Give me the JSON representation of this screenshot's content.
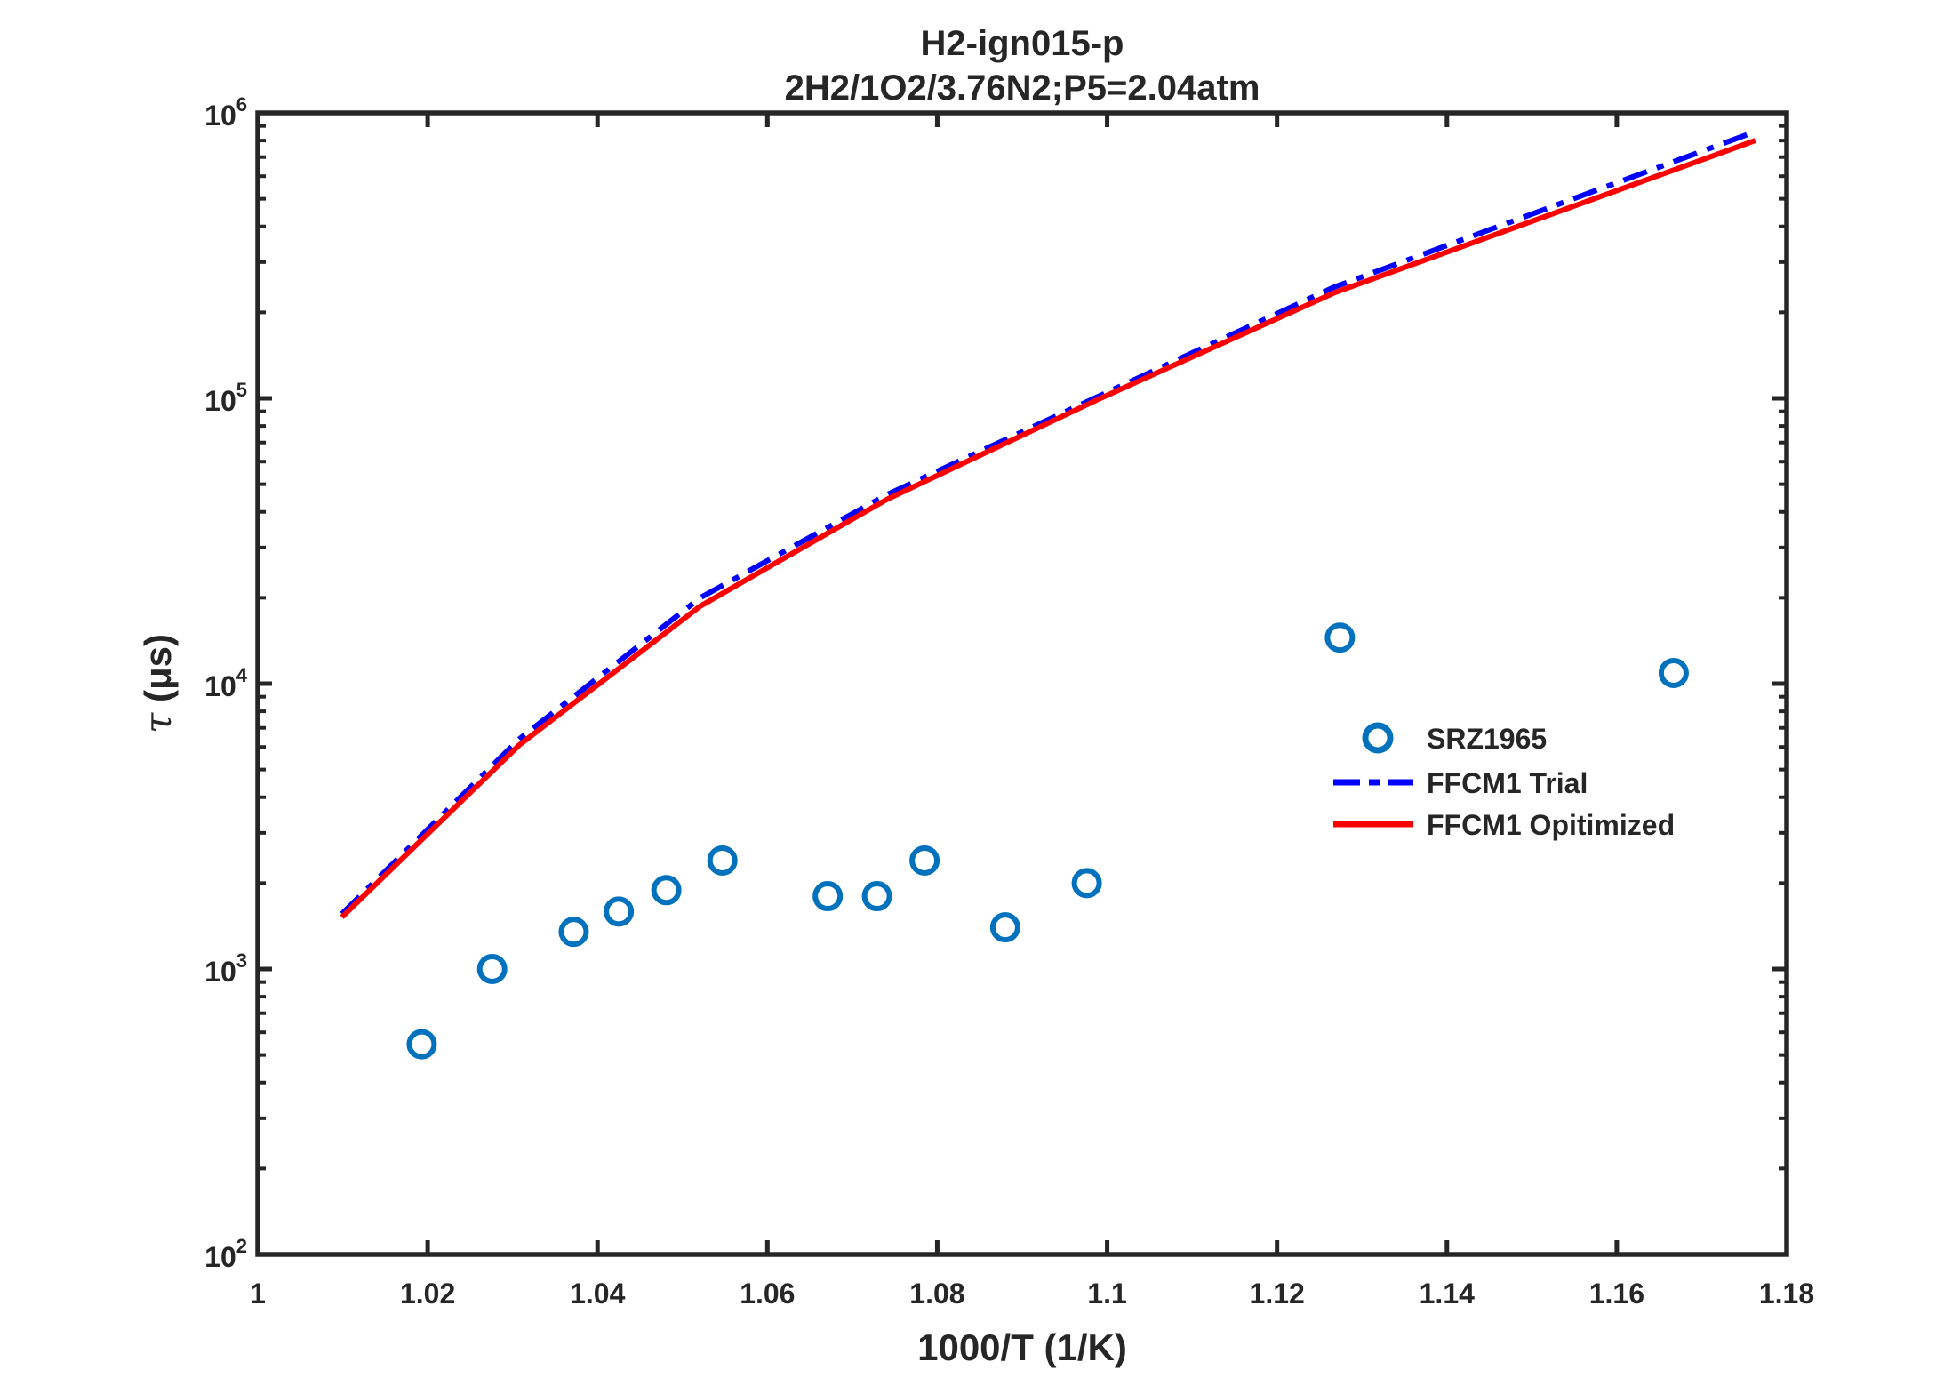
{
  "chart_data": {
    "type": "scatter",
    "title": "H2-ign015-p",
    "subtitle": "2H2/1O2/3.76N2;P5=2.04atm",
    "xlabel": "1000/T (1/K)",
    "ylabel_symbol": "τ",
    "ylabel_unit": "(μs)",
    "xlim": [
      1.0,
      1.18
    ],
    "ylim": [
      100,
      1000000
    ],
    "yscale": "log",
    "x_ticks": [
      1,
      1.02,
      1.04,
      1.06,
      1.08,
      1.1,
      1.12,
      1.14,
      1.16,
      1.18
    ],
    "x_tick_labels": [
      "1",
      "1.02",
      "1.04",
      "1.06",
      "1.08",
      "1.1",
      "1.12",
      "1.14",
      "1.16",
      "1.18"
    ],
    "y_ticks": [
      100,
      1000,
      10000,
      100000,
      1000000
    ],
    "y_tick_labels": [
      {
        "base": "10",
        "exp": "2"
      },
      {
        "base": "10",
        "exp": "3"
      },
      {
        "base": "10",
        "exp": "4"
      },
      {
        "base": "10",
        "exp": "5"
      },
      {
        "base": "10",
        "exp": "6"
      }
    ],
    "grid": false,
    "legend_position": "right-middle",
    "series": [
      {
        "name": "SRZ1965",
        "kind": "markers",
        "color": "#0072BD",
        "x": [
          1.0193,
          1.0276,
          1.0372,
          1.0425,
          1.0481,
          1.0547,
          1.0671,
          1.0729,
          1.0785,
          1.088,
          1.0976,
          1.1274,
          1.1667
        ],
        "y": [
          545,
          1000,
          1350,
          1590,
          1890,
          2400,
          1800,
          1800,
          2400,
          1400,
          2000,
          14500,
          10900
        ]
      },
      {
        "name": "FFCM1 Trial",
        "kind": "dashdot",
        "color": "#0000FF",
        "x": [
          1.0099,
          1.0308,
          1.0521,
          1.0741,
          1.0988,
          1.1267,
          1.1763
        ],
        "y": [
          1560,
          6400,
          20000,
          46000,
          101000,
          245000,
          860000
        ]
      },
      {
        "name": "FFCM1 Opitimized",
        "kind": "solid",
        "color": "#FF0000",
        "x": [
          1.0099,
          1.0308,
          1.0521,
          1.0741,
          1.0988,
          1.1267,
          1.1763
        ],
        "y": [
          1520,
          6100,
          18700,
          44300,
          98700,
          234000,
          800000
        ]
      }
    ]
  }
}
